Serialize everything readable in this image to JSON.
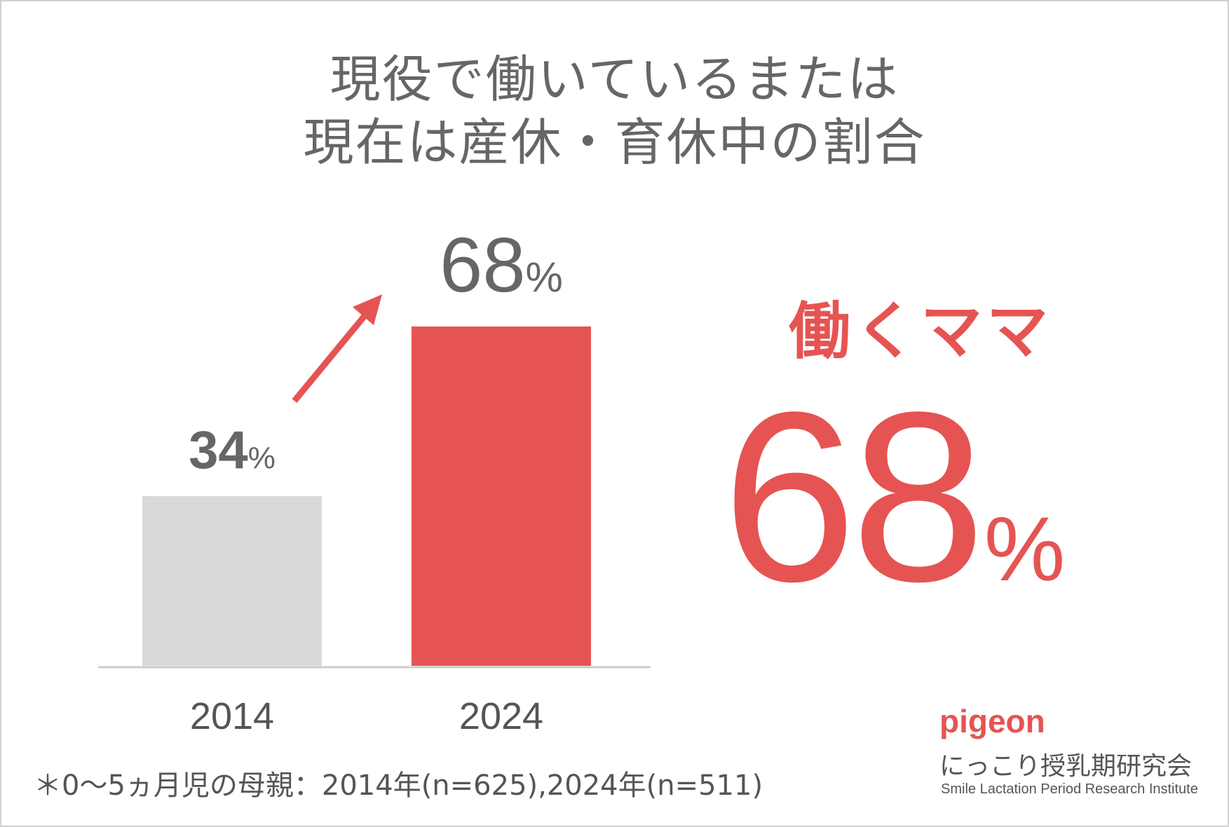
{
  "title_lines": [
    "現役で働いているまたは",
    "現在は産休・育休中の割合"
  ],
  "chart_data": {
    "type": "bar",
    "categories": [
      "2014",
      "2024"
    ],
    "values": [
      34,
      68
    ],
    "value_labels": [
      "34",
      "68"
    ],
    "unit": "%",
    "ylim": [
      0,
      100
    ],
    "bar_colors": [
      "#d9d9d9",
      "#e55452"
    ],
    "value_label_color": "#666666",
    "axis_color": "#cccccc",
    "arrow_color": "#e55452"
  },
  "highlight": {
    "label": "働くママ",
    "value": "68",
    "unit": "%",
    "color": "#e55452"
  },
  "footnote": "＊0〜5ヵ月児の母親：2014年(n=625),2024年(n=511)",
  "brand": {
    "logo_text": "pigeon",
    "org_name_jp": "にっこり授乳期研究会",
    "org_name_en": "Smile Lactation Period Research Institute"
  }
}
